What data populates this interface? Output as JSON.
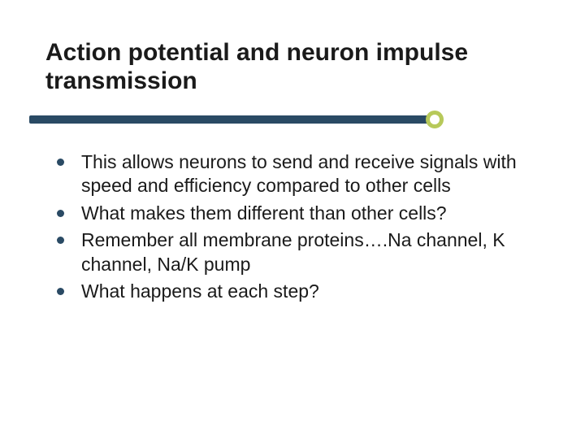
{
  "slide": {
    "title": "Action potential and neuron impulse transmission",
    "bullets": [
      "This allows neurons to send and receive signals with speed and efficiency compared to other cells",
      "What makes them different than other cells?",
      "Remember all membrane proteins….Na channel, K channel, Na/K pump",
      "What happens at each step?"
    ],
    "style": {
      "background_color": "#ffffff",
      "title_color": "#1a1a1a",
      "title_fontsize": 30,
      "title_fontweight": "bold",
      "body_color": "#1a1a1a",
      "body_fontsize": 23,
      "bullet_color": "#2a4a64",
      "accent_bar_color": "#2a4a64",
      "accent_circle_color": "#b7c95a",
      "font_family": "Arial"
    }
  }
}
